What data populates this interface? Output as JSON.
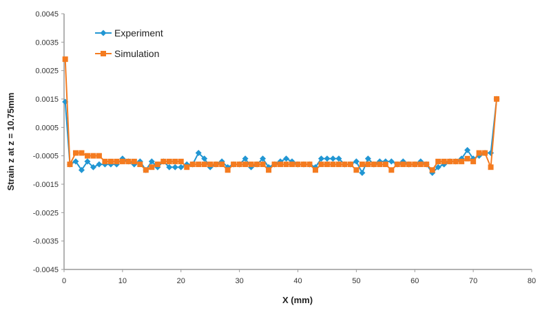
{
  "chart_data": {
    "type": "line",
    "title": "",
    "xlabel": "X (mm)",
    "ylabel": "Strain z at z = 10.75mm",
    "xlim": [
      0,
      80
    ],
    "ylim": [
      -0.0045,
      0.0045
    ],
    "xticks": [
      "0",
      "10",
      "20",
      "30",
      "40",
      "50",
      "60",
      "70",
      "80"
    ],
    "yticks": [
      "0.0045",
      "0.0035",
      "0.0025",
      "0.0015",
      "0.0005",
      "-0.0005",
      "-0.0015",
      "-0.0025",
      "-0.0035",
      "-0.0045"
    ],
    "grid": false,
    "legend_position": "top-left",
    "x": [
      0.2,
      1,
      2,
      3,
      4,
      5,
      6,
      7,
      8,
      9,
      10,
      11,
      12,
      13,
      14,
      15,
      16,
      17,
      18,
      19,
      20,
      21,
      22,
      23,
      24,
      25,
      26,
      27,
      28,
      29,
      30,
      31,
      32,
      33,
      34,
      35,
      36,
      37,
      38,
      39,
      40,
      41,
      42,
      43,
      44,
      45,
      46,
      47,
      48,
      49,
      50,
      51,
      52,
      53,
      54,
      55,
      56,
      57,
      58,
      59,
      60,
      61,
      62,
      63,
      64,
      65,
      66,
      67,
      68,
      69,
      70,
      71,
      72,
      73,
      74
    ],
    "series": [
      {
        "name": "Experiment",
        "color": "#2196d3",
        "marker": "diamond",
        "values": [
          0.0014,
          -0.0008,
          -0.0007,
          -0.001,
          -0.0007,
          -0.0009,
          -0.0008,
          -0.0008,
          -0.0008,
          -0.0008,
          -0.0006,
          -0.0007,
          -0.0008,
          -0.0007,
          -0.001,
          -0.0007,
          -0.0009,
          -0.0007,
          -0.0009,
          -0.0009,
          -0.0009,
          -0.0008,
          -0.0008,
          -0.0004,
          -0.0006,
          -0.0009,
          -0.0008,
          -0.0007,
          -0.0009,
          -0.0008,
          -0.0008,
          -0.0006,
          -0.0009,
          -0.0008,
          -0.0006,
          -0.0009,
          -0.0008,
          -0.0007,
          -0.0006,
          -0.0007,
          -0.0008,
          -0.0008,
          -0.0008,
          -0.0009,
          -0.0006,
          -0.0006,
          -0.0006,
          -0.0006,
          -0.0008,
          -0.0008,
          -0.0007,
          -0.0011,
          -0.0006,
          -0.0008,
          -0.0007,
          -0.0007,
          -0.0007,
          -0.0008,
          -0.0007,
          -0.0008,
          -0.0008,
          -0.0007,
          -0.0008,
          -0.0011,
          -0.0009,
          -0.0008,
          -0.0007,
          -0.0007,
          -0.0006,
          -0.0003,
          -0.0006,
          -0.0005,
          -0.0004,
          -0.0004,
          0.0015
        ]
      },
      {
        "name": "Simulation",
        "color": "#f47b20",
        "marker": "square",
        "values": [
          0.0029,
          -0.0008,
          -0.0004,
          -0.0004,
          -0.0005,
          -0.0005,
          -0.0005,
          -0.0007,
          -0.0007,
          -0.0007,
          -0.0007,
          -0.0007,
          -0.0007,
          -0.0008,
          -0.001,
          -0.0009,
          -0.0008,
          -0.0007,
          -0.0007,
          -0.0007,
          -0.0007,
          -0.0009,
          -0.0008,
          -0.0008,
          -0.0008,
          -0.0008,
          -0.0008,
          -0.0008,
          -0.001,
          -0.0008,
          -0.0008,
          -0.0008,
          -0.0008,
          -0.0008,
          -0.0008,
          -0.001,
          -0.0008,
          -0.0008,
          -0.0008,
          -0.0008,
          -0.0008,
          -0.0008,
          -0.0008,
          -0.001,
          -0.0008,
          -0.0008,
          -0.0008,
          -0.0008,
          -0.0008,
          -0.0008,
          -0.001,
          -0.0008,
          -0.0008,
          -0.0008,
          -0.0008,
          -0.0008,
          -0.001,
          -0.0008,
          -0.0008,
          -0.0008,
          -0.0008,
          -0.0008,
          -0.0008,
          -0.001,
          -0.0007,
          -0.0007,
          -0.0007,
          -0.0007,
          -0.0007,
          -0.0006,
          -0.0007,
          -0.0004,
          -0.0004,
          -0.0009,
          0.0015
        ]
      }
    ]
  }
}
